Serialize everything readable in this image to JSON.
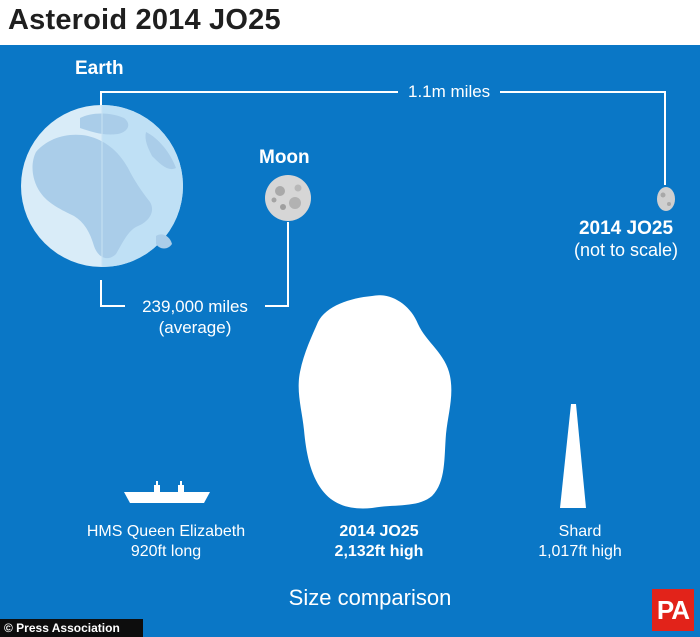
{
  "header": {
    "title": "Asteroid 2014 JO25"
  },
  "distance": {
    "earth_label": "Earth",
    "moon_label": "Moon",
    "earth_asteroid_distance": "1.1m miles",
    "earth_moon_distance_line1": "239,000 miles",
    "earth_moon_distance_line2": "(average)",
    "asteroid_label": "2014 JO25",
    "asteroid_note": "(not to scale)"
  },
  "size_comparison": {
    "ship_name": "HMS Queen Elizabeth",
    "ship_size": "920ft long",
    "asteroid_name": "2014 JO25",
    "asteroid_size": "2,132ft high",
    "shard_name": "Shard",
    "shard_size": "1,017ft high",
    "caption": "Size comparison"
  },
  "footer": {
    "credit": "© Press Association",
    "logo": "PA"
  },
  "colors": {
    "background": "#0a77c6",
    "earth_ocean": "#d9ecf8",
    "earth_land": "#aacde9",
    "white": "#ffffff"
  }
}
